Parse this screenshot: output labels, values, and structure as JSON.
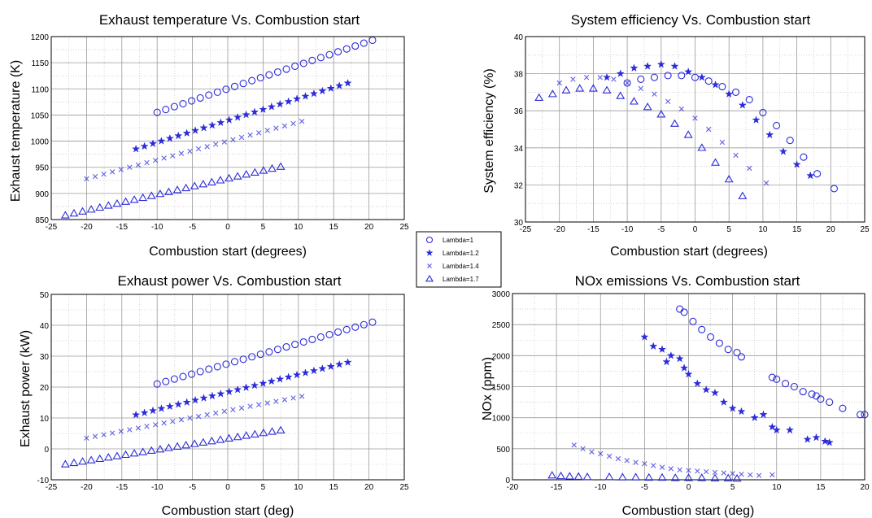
{
  "legend": {
    "entries": [
      {
        "label": "Lambda=1",
        "marker": "circle"
      },
      {
        "label": "Lambda=1.2",
        "marker": "star"
      },
      {
        "label": "Lambda=1.4",
        "marker": "x"
      },
      {
        "label": "Lambda=1.7",
        "marker": "triangle"
      }
    ]
  },
  "colors": {
    "marker": "#2b2bd9",
    "grid": "#9a9a9a",
    "axis": "#000000"
  },
  "chart_data": [
    {
      "id": "exhaust-temperature",
      "type": "scatter",
      "title": "Exhaust temperature Vs. Combustion start",
      "xlabel": "Combustion start (degrees)",
      "ylabel": "Exhaust temperature (K)",
      "xlim": [
        -25,
        25
      ],
      "ylim": [
        850,
        1200
      ],
      "xticks": [
        -25,
        -20,
        -15,
        -10,
        -5,
        0,
        5,
        10,
        15,
        20,
        25
      ],
      "yticks": [
        850,
        900,
        950,
        1000,
        1050,
        1100,
        1150,
        1200
      ],
      "grid": true,
      "series": [
        {
          "name": "Lambda=1",
          "marker": "circle",
          "x_range": [
            -10,
            20.5
          ],
          "y_range": [
            1055,
            1193
          ],
          "count": 26
        },
        {
          "name": "Lambda=1.2",
          "marker": "star",
          "x_range": [
            -13,
            17
          ],
          "y_range": [
            985,
            1111
          ],
          "count": 26
        },
        {
          "name": "Lambda=1.4",
          "marker": "x",
          "x_range": [
            -20,
            10.5
          ],
          "y_range": [
            928,
            1038
          ],
          "count": 26
        },
        {
          "name": "Lambda=1.7",
          "marker": "triangle",
          "x_range": [
            -23,
            7.5
          ],
          "y_range": [
            858,
            951
          ],
          "count": 26
        }
      ]
    },
    {
      "id": "system-efficiency",
      "type": "scatter",
      "title": "System efficiency Vs. Combustion start",
      "xlabel": "Combustion start (degrees)",
      "ylabel": "System efficiency (%)",
      "xlim": [
        -25,
        25
      ],
      "ylim": [
        30,
        40
      ],
      "xticks": [
        -25,
        -20,
        -15,
        -10,
        -5,
        0,
        5,
        10,
        15,
        20,
        25
      ],
      "yticks": [
        30,
        32,
        34,
        36,
        38,
        40
      ],
      "grid": true,
      "series": [
        {
          "name": "Lambda=1",
          "marker": "circle",
          "x": [
            -10,
            -8,
            -6,
            -4,
            -2,
            0,
            2,
            4,
            6,
            8,
            10,
            12,
            14,
            16,
            18,
            20.5
          ],
          "y": [
            37.5,
            37.7,
            37.8,
            37.9,
            37.9,
            37.8,
            37.6,
            37.3,
            37.0,
            36.6,
            35.9,
            35.2,
            34.4,
            33.5,
            32.6,
            31.8
          ]
        },
        {
          "name": "Lambda=1.2",
          "marker": "star",
          "x": [
            -13,
            -11,
            -9,
            -7,
            -5,
            -3,
            -1,
            1,
            3,
            5,
            7,
            9,
            11,
            13,
            15,
            17
          ],
          "y": [
            37.8,
            38.0,
            38.3,
            38.4,
            38.5,
            38.4,
            38.1,
            37.8,
            37.4,
            36.9,
            36.3,
            35.5,
            34.7,
            33.8,
            33.1,
            32.5
          ]
        },
        {
          "name": "Lambda=1.4",
          "marker": "x",
          "x": [
            -20,
            -18,
            -16,
            -14,
            -12,
            -10,
            -8,
            -6,
            -4,
            -2,
            0,
            2,
            4,
            6,
            8,
            10.5
          ],
          "y": [
            37.5,
            37.7,
            37.8,
            37.8,
            37.7,
            37.5,
            37.2,
            36.9,
            36.5,
            36.1,
            35.6,
            35.0,
            34.3,
            33.6,
            32.9,
            32.1
          ]
        },
        {
          "name": "Lambda=1.7",
          "marker": "triangle",
          "x": [
            -23,
            -21,
            -19,
            -17,
            -15,
            -13,
            -11,
            -9,
            -7,
            -5,
            -3,
            -1,
            1,
            3,
            5,
            7
          ],
          "y": [
            36.7,
            36.9,
            37.1,
            37.2,
            37.2,
            37.1,
            36.8,
            36.5,
            36.2,
            35.8,
            35.3,
            34.7,
            34.0,
            33.2,
            32.3,
            31.4
          ]
        }
      ]
    },
    {
      "id": "exhaust-power",
      "type": "scatter",
      "title": "Exhaust power Vs. Combustion start",
      "xlabel": "Combustion start (deg)",
      "ylabel": "Exhaust power (kW)",
      "xlim": [
        -25,
        25
      ],
      "ylim": [
        -10,
        50
      ],
      "xticks": [
        -25,
        -20,
        -15,
        -10,
        -5,
        0,
        5,
        10,
        15,
        20,
        25
      ],
      "yticks": [
        -10,
        0,
        10,
        20,
        30,
        40,
        50
      ],
      "grid": true,
      "series": [
        {
          "name": "Lambda=1",
          "marker": "circle",
          "x_range": [
            -10,
            20.5
          ],
          "y_range": [
            21,
            41
          ],
          "count": 26
        },
        {
          "name": "Lambda=1.2",
          "marker": "star",
          "x_range": [
            -13,
            17
          ],
          "y_range": [
            11,
            28
          ],
          "count": 26
        },
        {
          "name": "Lambda=1.4",
          "marker": "x",
          "x_range": [
            -20,
            10.5
          ],
          "y_range": [
            3.5,
            17
          ],
          "count": 26
        },
        {
          "name": "Lambda=1.7",
          "marker": "triangle",
          "x_range": [
            -23,
            7.5
          ],
          "y_range": [
            -5,
            6
          ],
          "count": 26
        }
      ]
    },
    {
      "id": "nox-emissions",
      "type": "scatter",
      "title": "NOx emissions Vs. Combustion start",
      "xlabel": "Combustion start (deg)",
      "ylabel": "NOx (ppm)",
      "xlim": [
        -20,
        20
      ],
      "ylim": [
        0,
        3000
      ],
      "xticks": [
        -20,
        -15,
        -10,
        -5,
        0,
        5,
        10,
        15,
        20
      ],
      "yticks": [
        0,
        500,
        1000,
        1500,
        2000,
        2500,
        3000
      ],
      "grid": true,
      "series": [
        {
          "name": "Lambda=1",
          "marker": "circle",
          "x": [
            -1,
            -0.5,
            0.5,
            1.5,
            2.5,
            3.5,
            4.5,
            5.5,
            6,
            9.5,
            10,
            11,
            12,
            13,
            14,
            14.5,
            15,
            16,
            17.5,
            19.5,
            20
          ],
          "y": [
            2750,
            2700,
            2550,
            2420,
            2300,
            2200,
            2100,
            2050,
            1980,
            1650,
            1620,
            1550,
            1500,
            1420,
            1380,
            1350,
            1300,
            1250,
            1150,
            1050,
            1050
          ]
        },
        {
          "name": "Lambda=1.2",
          "marker": "star",
          "x": [
            -5,
            -4,
            -3,
            -2.5,
            -2,
            -1,
            -0.5,
            0,
            1,
            2,
            3,
            4,
            5,
            6,
            7.5,
            8.5,
            9.5,
            10,
            11.5,
            13.5,
            14.5,
            15.5,
            16
          ],
          "y": [
            2300,
            2150,
            2100,
            1900,
            2000,
            1950,
            1800,
            1700,
            1550,
            1450,
            1400,
            1250,
            1150,
            1100,
            1000,
            1050,
            850,
            800,
            800,
            650,
            680,
            620,
            600
          ]
        },
        {
          "name": "Lambda=1.4",
          "marker": "x",
          "x": [
            -13,
            -12,
            -11,
            -10,
            -9,
            -8,
            -7,
            -6,
            -5,
            -4,
            -3,
            -2,
            -1,
            0,
            1,
            2,
            3,
            4,
            5,
            6,
            7,
            8,
            9.5
          ],
          "y": [
            560,
            500,
            450,
            420,
            380,
            340,
            310,
            280,
            260,
            230,
            200,
            180,
            160,
            150,
            140,
            130,
            120,
            110,
            100,
            90,
            80,
            70,
            80
          ]
        },
        {
          "name": "Lambda=1.7",
          "marker": "triangle",
          "x": [
            -15.5,
            -14.5,
            -13.5,
            -12.5,
            -11.5,
            -9,
            -7.5,
            -6,
            -4.5,
            -3,
            -1.5,
            0,
            1.5,
            3,
            4.5,
            5.5
          ],
          "y": [
            70,
            60,
            55,
            50,
            45,
            45,
            40,
            40,
            35,
            35,
            30,
            30,
            30,
            25,
            25,
            20
          ]
        }
      ]
    }
  ]
}
